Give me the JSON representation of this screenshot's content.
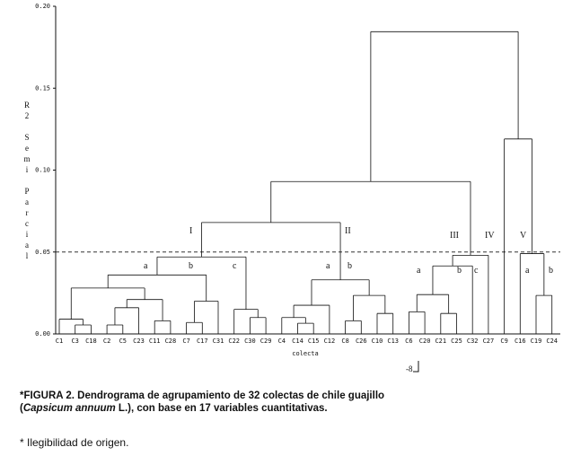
{
  "figure": {
    "yticks": [
      {
        "value": 0,
        "label": "0.00"
      },
      {
        "value": 0.05,
        "label": "0.05"
      },
      {
        "value": 0.1,
        "label": "0.10"
      },
      {
        "value": 0.15,
        "label": "0.15"
      },
      {
        "value": 0.2,
        "label": "0.20"
      }
    ],
    "ylim": [
      0,
      0.2
    ],
    "y_label": "R2 Semi Parcial",
    "x_label": "colecta",
    "cutoff": 0.05,
    "page_mark": "-8",
    "cluster_labels": [
      "I",
      "II",
      "III",
      "IV",
      "V",
      "a",
      "b",
      "c",
      "a",
      "b",
      "a",
      "b",
      "c",
      "a",
      "b"
    ],
    "tree": {
      "height": 0.1845,
      "children": [
        {
          "height": 0.093,
          "children": [
            {
              "height": 0.068,
              "children": [
                {
                  "height": 0.047,
                  "children": [
                    {
                      "height": 0.036,
                      "children": [
                        {
                          "height": 0.028,
                          "children": [
                            {
                              "height": 0.009,
                              "children": [
                                {
                                  "label": "C1"
                                },
                                {
                                  "height": 0.0055,
                                  "children": [
                                    {
                                      "label": "C3"
                                    },
                                    {
                                      "label": "C18"
                                    }
                                  ]
                                }
                              ]
                            },
                            {
                              "height": 0.021,
                              "children": [
                                {
                                  "height": 0.016,
                                  "children": [
                                    {
                                      "height": 0.0055,
                                      "children": [
                                        {
                                          "label": "C2"
                                        },
                                        {
                                          "label": "C5"
                                        }
                                      ]
                                    },
                                    {
                                      "label": "C23"
                                    }
                                  ]
                                },
                                {
                                  "height": 0.008,
                                  "children": [
                                    {
                                      "label": "C11"
                                    },
                                    {
                                      "label": "C28"
                                    }
                                  ]
                                }
                              ]
                            }
                          ]
                        },
                        {
                          "height": 0.02,
                          "children": [
                            {
                              "height": 0.007,
                              "children": [
                                {
                                  "label": "C7"
                                },
                                {
                                  "label": "C17"
                                }
                              ]
                            },
                            {
                              "label": "C31"
                            }
                          ]
                        }
                      ]
                    },
                    {
                      "height": 0.015,
                      "children": [
                        {
                          "label": "C22"
                        },
                        {
                          "height": 0.01,
                          "children": [
                            {
                              "label": "C30"
                            },
                            {
                              "label": "C29"
                            }
                          ]
                        }
                      ]
                    }
                  ]
                },
                {
                  "height": 0.033,
                  "children": [
                    {
                      "height": 0.0175,
                      "children": [
                        {
                          "height": 0.01,
                          "children": [
                            {
                              "label": "C4"
                            },
                            {
                              "height": 0.0065,
                              "children": [
                                {
                                  "label": "C14"
                                },
                                {
                                  "label": "C15"
                                }
                              ]
                            }
                          ]
                        },
                        {
                          "label": "C12"
                        }
                      ]
                    },
                    {
                      "height": 0.0235,
                      "children": [
                        {
                          "height": 0.008,
                          "children": [
                            {
                              "label": "C8"
                            },
                            {
                              "label": "C26"
                            }
                          ]
                        },
                        {
                          "height": 0.0125,
                          "children": [
                            {
                              "label": "C10"
                            },
                            {
                              "label": "C13"
                            }
                          ]
                        }
                      ]
                    }
                  ]
                }
              ]
            },
            {
              "height": 0.048,
              "children": [
                {
                  "height": 0.0415,
                  "children": [
                    {
                      "height": 0.024,
                      "children": [
                        {
                          "height": 0.0135,
                          "children": [
                            {
                              "label": "C6"
                            },
                            {
                              "label": "C20"
                            }
                          ]
                        },
                        {
                          "height": 0.0125,
                          "children": [
                            {
                              "label": "C21"
                            },
                            {
                              "label": "C25"
                            }
                          ]
                        }
                      ]
                    },
                    {
                      "label": "C32"
                    }
                  ]
                },
                {
                  "label": "C27"
                }
              ]
            }
          ]
        },
        {
          "height": 0.119,
          "children": [
            {
              "label": "C9"
            },
            {
              "height": 0.049,
              "children": [
                {
                  "label": "C16"
                },
                {
                  "height": 0.0235,
                  "children": [
                    {
                      "label": "C19"
                    },
                    {
                      "label": "C24"
                    }
                  ]
                }
              ]
            }
          ]
        }
      ]
    }
  },
  "caption": {
    "marker": "*",
    "label": "FIGURA 2.",
    "text_1": "Dendrograma de agrupamiento de 32 colectas de chile guajillo (",
    "species": "Capsicum annuum",
    "text_2": " L.), con base en 17 variables cuantitativas."
  },
  "footnote": "* Ilegibilidad de origen."
}
